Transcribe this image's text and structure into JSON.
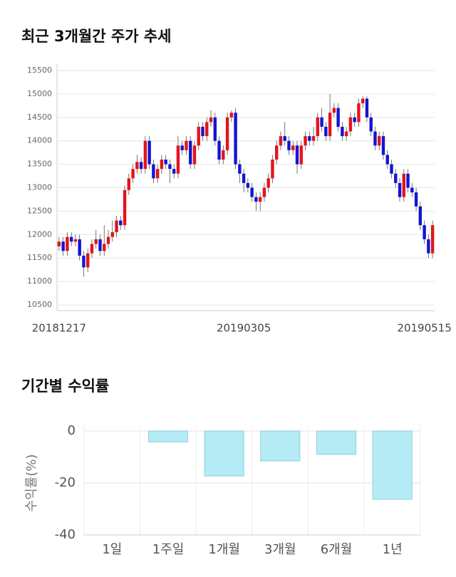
{
  "chart_data": [
    {
      "type": "candlestick",
      "title": "최근 3개월간 주가 추세",
      "categories": [
        "20181217",
        null,
        null,
        null,
        null,
        null,
        null,
        null,
        null,
        null,
        null,
        null,
        null,
        null,
        null,
        null,
        null,
        null,
        null,
        null,
        null,
        null,
        null,
        null,
        null,
        null,
        null,
        null,
        null,
        null,
        null,
        null,
        null,
        null,
        null,
        null,
        null,
        null,
        null,
        null,
        null,
        null,
        null,
        null,
        null,
        "20190305",
        null,
        null,
        null,
        null,
        null,
        null,
        null,
        null,
        null,
        null,
        null,
        null,
        null,
        null,
        null,
        null,
        null,
        null,
        null,
        null,
        null,
        null,
        null,
        null,
        null,
        null,
        null,
        null,
        null,
        null,
        null,
        null,
        null,
        null,
        null,
        null,
        null,
        null,
        null,
        null,
        null,
        null,
        null,
        "20190515",
        null,
        null
      ],
      "open": [
        11750,
        11850,
        11650,
        11950,
        11850,
        11900,
        11550,
        11300,
        11600,
        11800,
        11900,
        11650,
        11800,
        11950,
        12050,
        12300,
        12200,
        12950,
        13200,
        13400,
        13550,
        13400,
        14000,
        13500,
        13200,
        13400,
        13600,
        13500,
        13400,
        13300,
        13900,
        13800,
        14000,
        13500,
        13900,
        14300,
        14100,
        14400,
        14500,
        14000,
        13600,
        13800,
        14500,
        14600,
        13500,
        13300,
        13100,
        13000,
        12800,
        12700,
        12800,
        13000,
        13200,
        13600,
        13900,
        14100,
        14000,
        13800,
        13900,
        13500,
        13900,
        14100,
        14000,
        14100,
        14500,
        14300,
        14100,
        14600,
        14700,
        14300,
        14100,
        14200,
        14500,
        14400,
        14800,
        14900,
        14500,
        14200,
        13900,
        14100,
        13700,
        13500,
        13300,
        13100,
        12800,
        13300,
        13000,
        12900,
        12600,
        12200,
        11900,
        11600
      ],
      "high": [
        11950,
        11950,
        12050,
        12050,
        12000,
        12000,
        11650,
        11700,
        11900,
        12100,
        12000,
        12200,
        12100,
        12300,
        12400,
        12400,
        13050,
        13300,
        13500,
        13700,
        13650,
        14100,
        14100,
        13600,
        13500,
        13700,
        13700,
        13600,
        13500,
        14100,
        14000,
        14100,
        14100,
        14000,
        14400,
        14400,
        14500,
        14650,
        14600,
        14100,
        13900,
        14600,
        14650,
        14700,
        13600,
        13400,
        13200,
        13100,
        12900,
        12900,
        13100,
        13300,
        13700,
        14000,
        14200,
        14400,
        14100,
        14000,
        14000,
        14000,
        14200,
        14200,
        14300,
        14600,
        14700,
        14400,
        15000,
        14800,
        14800,
        14400,
        14300,
        14600,
        14600,
        14900,
        14950,
        14950,
        14600,
        14300,
        14200,
        14200,
        13800,
        13600,
        13400,
        13200,
        13400,
        13400,
        13100,
        13000,
        12700,
        12300,
        12000,
        12300
      ],
      "low": [
        11650,
        11550,
        11550,
        11750,
        11750,
        11450,
        11100,
        11200,
        11500,
        11700,
        11550,
        11550,
        11700,
        11850,
        11950,
        12100,
        12100,
        12850,
        13100,
        13300,
        13300,
        13300,
        13400,
        13100,
        13100,
        13300,
        13400,
        13100,
        13200,
        13200,
        13700,
        13700,
        13400,
        13400,
        13800,
        14000,
        14000,
        14300,
        13900,
        13500,
        13500,
        13700,
        14400,
        13400,
        13100,
        12900,
        12900,
        12700,
        12500,
        12500,
        12700,
        12900,
        13100,
        13500,
        13800,
        13900,
        13700,
        13700,
        13300,
        13400,
        13800,
        13900,
        13900,
        14000,
        14200,
        14000,
        14000,
        14500,
        14200,
        14000,
        14000,
        14100,
        14300,
        14300,
        14700,
        14400,
        14100,
        13800,
        13800,
        13600,
        13400,
        13200,
        13000,
        12700,
        12700,
        12900,
        12800,
        12500,
        12100,
        11800,
        11500,
        11500
      ],
      "close": [
        11850,
        11650,
        11950,
        11850,
        11900,
        11550,
        11300,
        11600,
        11800,
        11900,
        11650,
        11800,
        11950,
        12050,
        12300,
        12200,
        12950,
        13200,
        13400,
        13550,
        13400,
        14000,
        13500,
        13200,
        13400,
        13600,
        13500,
        13400,
        13300,
        13900,
        13800,
        14000,
        13500,
        13900,
        14300,
        14100,
        14400,
        14500,
        14000,
        13600,
        13800,
        14500,
        14600,
        13500,
        13300,
        13100,
        13000,
        12800,
        12700,
        12800,
        13000,
        13200,
        13600,
        13900,
        14100,
        14000,
        13800,
        13900,
        13500,
        13900,
        14100,
        14000,
        14100,
        14500,
        14300,
        14100,
        14600,
        14700,
        14300,
        14100,
        14200,
        14500,
        14400,
        14800,
        14900,
        14500,
        14200,
        13900,
        14100,
        13700,
        13500,
        13300,
        13100,
        12800,
        13300,
        13000,
        12900,
        12600,
        12200,
        11900,
        11600,
        12200
      ],
      "up_color": "#e3141b",
      "down_color": "#1414d2",
      "ylim": [
        10500,
        15500
      ],
      "yticks": [
        10500,
        11000,
        11500,
        12000,
        12500,
        13000,
        13500,
        14000,
        14500,
        15000,
        15500
      ],
      "grid": true
    },
    {
      "type": "bar",
      "title": "기간별 수익률",
      "ylabel": "수익률(%)",
      "categories": [
        "1일",
        "1주일",
        "1개월",
        "3개월",
        "6개월",
        "1년"
      ],
      "values": [
        0,
        -4.2,
        -17.3,
        -11.5,
        -9,
        -26.3
      ],
      "color": "#b4ebf4",
      "ylim": [
        -40,
        0
      ],
      "yticks": [
        0,
        -20,
        -40
      ],
      "grid": true
    }
  ]
}
